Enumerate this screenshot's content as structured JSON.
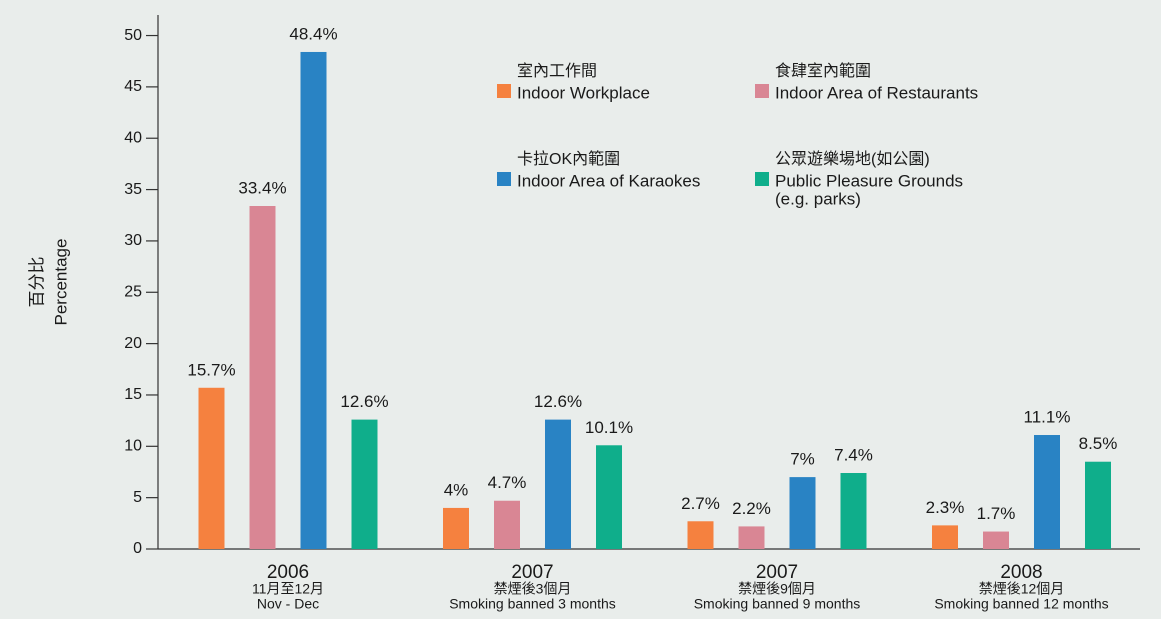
{
  "chart_data": {
    "type": "bar",
    "ylabel": [
      "百分比",
      "Percentage"
    ],
    "categories": [
      [
        "2006",
        "11月至12月",
        "Nov - Dec"
      ],
      [
        "2007",
        "禁煙後3個月",
        "Smoking banned 3 months"
      ],
      [
        "2007",
        "禁煙後9個月",
        "Smoking banned 9 months"
      ],
      [
        "2008",
        "禁煙後12個月",
        "Smoking banned 12 months"
      ]
    ],
    "series": [
      {
        "name": [
          "室內工作間",
          "Indoor Workplace"
        ],
        "color": "#f5813f",
        "values": [
          15.7,
          4,
          2.7,
          2.3
        ],
        "value_labels": [
          "15.7%",
          "4%",
          "2.7%",
          "2.3%"
        ]
      },
      {
        "name": [
          "食肆室內範圍",
          "Indoor Area of Restaurants"
        ],
        "color": "#d98694",
        "values": [
          33.4,
          4.7,
          2.2,
          1.7
        ],
        "value_labels": [
          "33.4%",
          "4.7%",
          "2.2%",
          "1.7%"
        ]
      },
      {
        "name": [
          "卡拉OK內範圍",
          "Indoor Area of Karaokes"
        ],
        "color": "#2983c4",
        "values": [
          48.4,
          12.6,
          7,
          11.1
        ],
        "value_labels": [
          "48.4%",
          "12.6%",
          "7%",
          "11.1%"
        ]
      },
      {
        "name": [
          "公眾遊樂場地(如公園)",
          "Public Pleasure Grounds",
          "(e.g. parks)"
        ],
        "color": "#0fae8b",
        "values": [
          12.6,
          10.1,
          7.4,
          8.5
        ],
        "value_labels": [
          "12.6%",
          "10.1%",
          "7.4%",
          "8.5%"
        ]
      }
    ],
    "ylim": [
      0,
      52
    ],
    "yticks": [
      0,
      5,
      10,
      15,
      20,
      25,
      30,
      35,
      40,
      45,
      50
    ],
    "grid": false
  }
}
